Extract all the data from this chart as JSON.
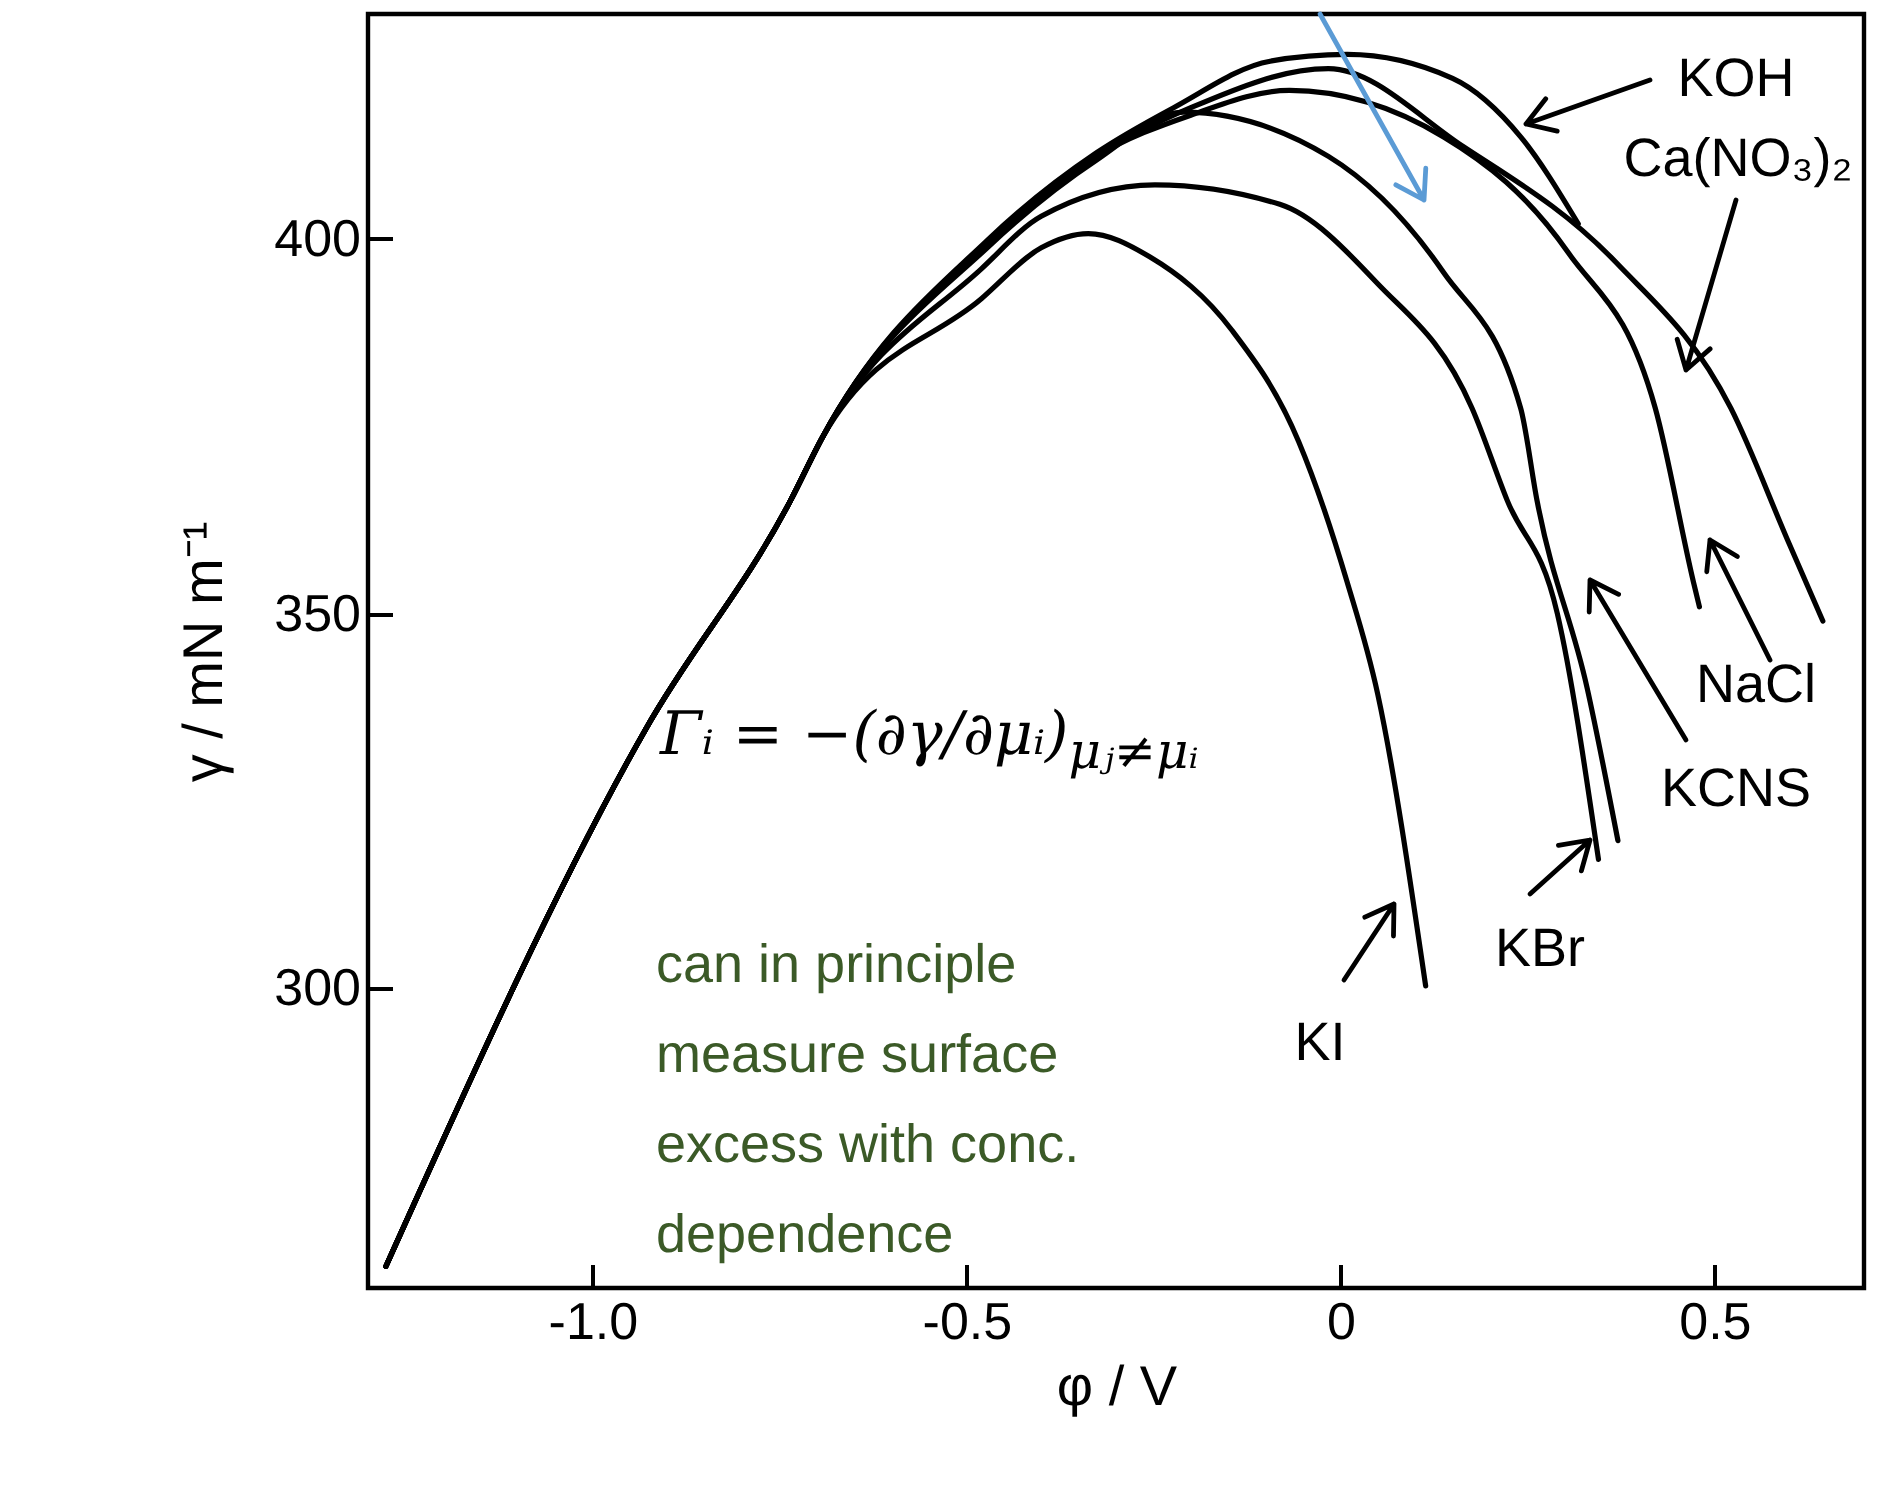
{
  "chart_data": {
    "type": "line",
    "xlabel": "φ / V",
    "ylabel": "γ / mN m⁻¹",
    "xlim": [
      -1.3,
      0.7
    ],
    "ylim": [
      260,
      430
    ],
    "xticks": [
      {
        "value": -1,
        "label": "-1.0"
      },
      -0.5,
      0,
      0.5
    ],
    "yticks": [
      300,
      350,
      400
    ],
    "grid": false,
    "legend": "bottom right",
    "marker": "none",
    "line_style": "solid",
    "series": [
      {
        "name": "KOH",
        "color": "#000000",
        "x": [
          -1.276,
          -0.928,
          -0.735,
          -0.692,
          -0.47,
          -0.326,
          -0.223,
          -0.094,
          0.009,
          0.15,
          0.241,
          0.318
        ],
        "values": [
          262.9,
          334.7,
          365.1,
          373.6,
          400,
          411.5,
          417.5,
          423.7,
          424.6,
          421.4,
          413.6,
          402
        ]
      },
      {
        "name": "Ca(NO₃)₂",
        "color": "#000000",
        "x": [
          -1.276,
          -0.928,
          -0.735,
          -0.692,
          -0.47,
          -0.326,
          -0.2,
          -0.016,
          0.163,
          0.369,
          0.522,
          0.6,
          0.645
        ],
        "values": [
          262.9,
          334.7,
          365.1,
          373.6,
          399.5,
          411,
          417.5,
          422.7,
          412.4,
          396.8,
          377.4,
          359.3,
          349
        ]
      },
      {
        "name": "NaCl",
        "color": "#000000",
        "x": [
          -1.276,
          -0.928,
          -0.735,
          -0.692,
          -0.47,
          -0.326,
          -0.2,
          -0.068,
          0.138,
          0.305,
          0.421,
          0.472,
          0.48
        ],
        "values": [
          262.9,
          334.7,
          365.1,
          373.6,
          399.5,
          411,
          416.5,
          419.8,
          413.6,
          398.1,
          377.4,
          354.2,
          350.9
        ]
      },
      {
        "name": "KCNS",
        "color": "#000000",
        "x": [
          -1.276,
          -0.928,
          -0.735,
          -0.692,
          -0.47,
          -0.326,
          -0.21,
          -0.016,
          0.138,
          0.241,
          0.263,
          0.33,
          0.371
        ],
        "values": [
          262.9,
          334.7,
          365.1,
          373.6,
          399,
          410.5,
          416.9,
          411,
          395.5,
          377.4,
          365,
          340,
          319.7
        ]
      },
      {
        "name": "KBr",
        "color": "#000000",
        "x": [
          -1.276,
          -0.928,
          -0.735,
          -0.692,
          -0.48,
          -0.4,
          -0.248,
          -0.081,
          0.048,
          0.176,
          0.223,
          0.29,
          0.345
        ],
        "values": [
          262.9,
          334.7,
          365.1,
          373.6,
          396,
          403,
          407.2,
          404.6,
          394.2,
          377.4,
          365.1,
          350,
          317.2
        ]
      },
      {
        "name": "KI",
        "color": "#000000",
        "x": [
          -1.276,
          -0.928,
          -0.735,
          -0.692,
          -0.48,
          -0.4,
          -0.337,
          -0.255,
          -0.145,
          -0.056,
          0.009,
          0.05,
          0.114
        ],
        "values": [
          262.9,
          334.7,
          365.1,
          373.6,
          392,
          398.8,
          400.7,
          397.6,
          387.8,
          373,
          354.2,
          339.2,
          300.3
        ]
      }
    ],
    "annotations": [
      "Γᵢ = −(∂γ/∂μᵢ)$_{μⱼ≠μᵢ}$",
      "can in principle measure surface excess with conc. dependence"
    ]
  }
}
